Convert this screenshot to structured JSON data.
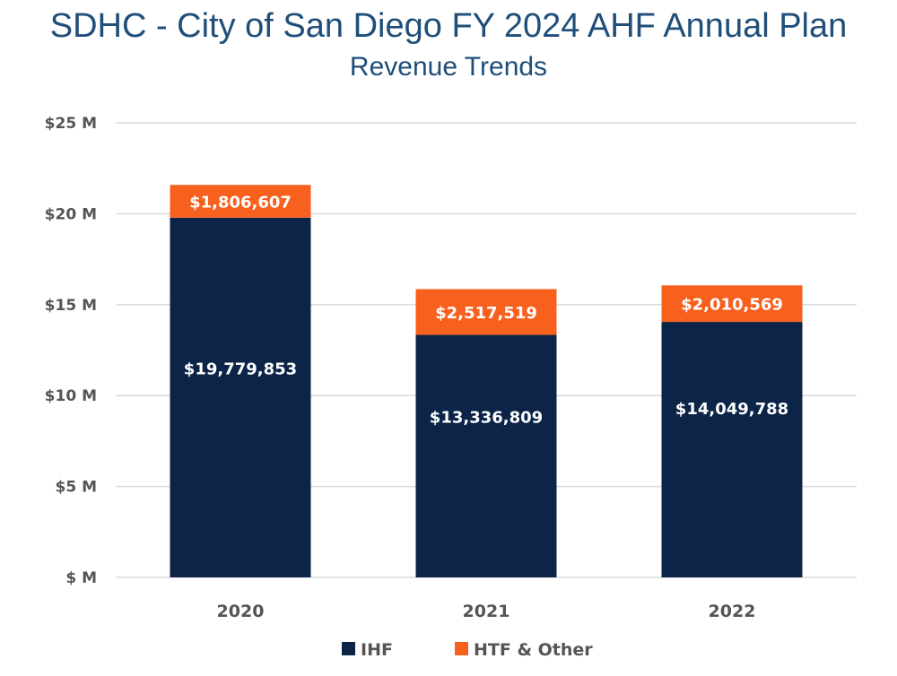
{
  "header": {
    "title": "SDHC - City of San Diego FY 2024 AHF Annual Plan",
    "subtitle": "Revenue Trends"
  },
  "colors": {
    "title": "#1f4e79",
    "grid": "#d9d9d9",
    "axis_text": "#555555"
  },
  "chart_data": {
    "type": "bar",
    "stacked": true,
    "title": "SDHC - City of San Diego FY 2024 AHF Annual Plan",
    "subtitle": "Revenue Trends",
    "categories": [
      "2020",
      "2021",
      "2022"
    ],
    "series": [
      {
        "name": "IHF",
        "color": "#0b2447",
        "values": [
          19779853,
          13336809,
          14049788
        ],
        "labels": [
          "$19,779,853",
          "$13,336,809",
          "$14,049,788"
        ]
      },
      {
        "name": "HTF & Other",
        "color": "#f7601d",
        "values": [
          1806607,
          2517519,
          2010569
        ],
        "labels": [
          "$1,806,607",
          "$2,517,519",
          "$2,010,569"
        ]
      }
    ],
    "ylim": [
      0,
      25000000
    ],
    "yticks": [
      0,
      5000000,
      10000000,
      15000000,
      20000000,
      25000000
    ],
    "ytick_labels": [
      "$ M",
      "$5 M",
      "$10 M",
      "$15 M",
      "$20 M",
      "$25 M"
    ],
    "grid": true,
    "legend_position": "bottom"
  }
}
